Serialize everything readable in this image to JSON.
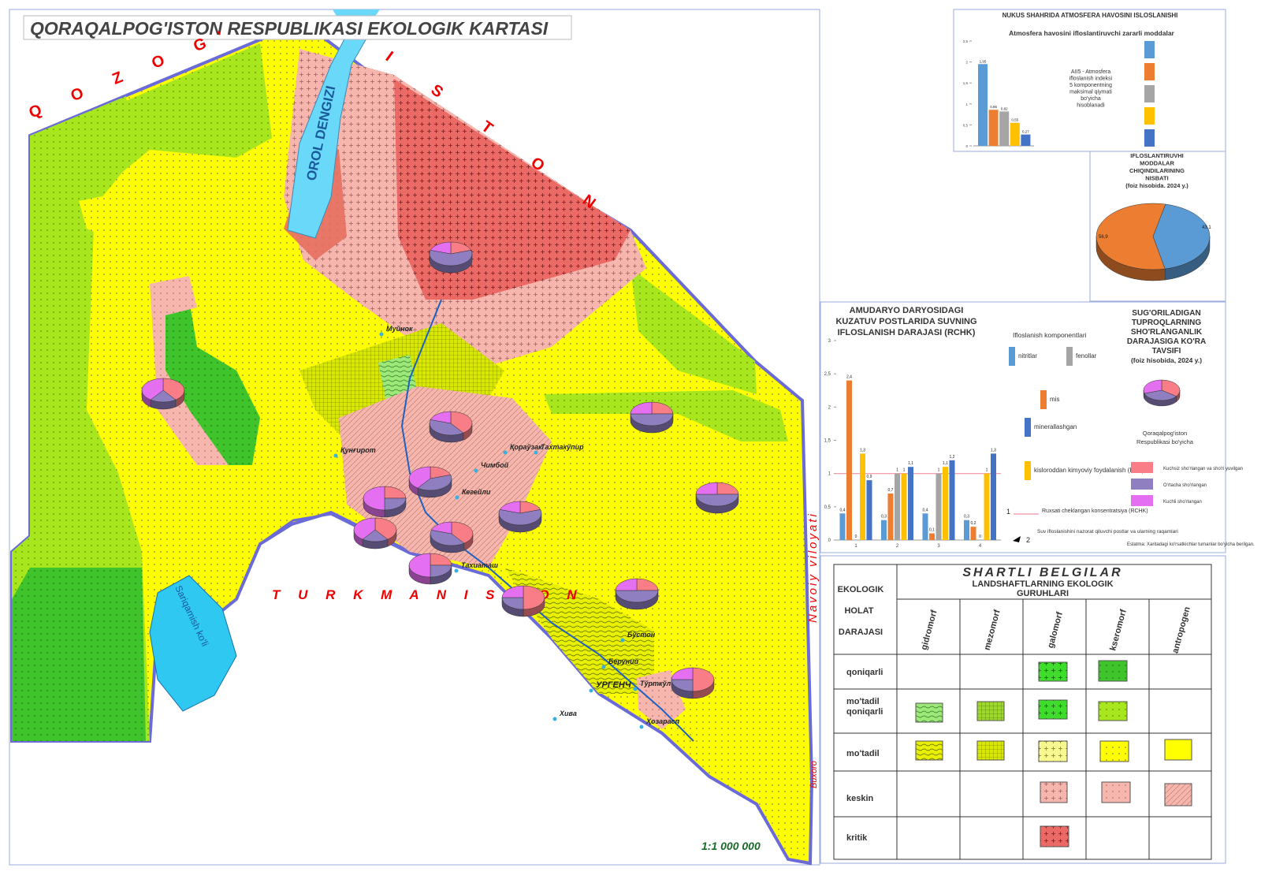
{
  "title": "QORAQALPOG'ISTON RESPUBLIKASI  EKOLOGIK KARTASI",
  "scale": "1:1 000 000",
  "map_labels": {
    "kazakhstan_west": "Q O Z O G'",
    "kazakhstan_east": "I S T O N",
    "turkmenistan": "T U R K M A N I S T O N",
    "navoiy": "Navoiy viloyati",
    "buxoro": "Buxoro",
    "aral_sea": "OROL DENGIZI",
    "sarygamysh": "Sariqamish ko'li"
  },
  "cities": [
    "Муйнок",
    "Қунғирот",
    "Чимбой",
    "Қораўзак",
    "Тахтакўпир",
    "Кегейли",
    "Тахиаташ",
    "Бўстон",
    "Беруний",
    "Тўрткўл",
    "УРГЕНЧ",
    "Хива",
    "Ҳозарасп"
  ],
  "air_chart": {
    "title": "NUKUS SHAHRIDA ATMOSFERA HAVOSINI ISLOSLANISHI",
    "subtitle": "Atmosfera havosini ifloslantiruvchi zararli moddalar",
    "note": [
      "AII5 - Atmosfera",
      "ifloslanish indeksi",
      "5 komponentning",
      "maksimal qiymati",
      "bo'yicha",
      "hisoblanadi"
    ],
    "values": [
      1.95,
      0.86,
      0.82,
      0.55,
      0.27
    ],
    "value_labels": [
      "1,95",
      "0,86",
      "0,82",
      "0,55",
      "0,27"
    ],
    "colors": [
      "#5b9bd5",
      "#ed7d31",
      "#a5a5a5",
      "#ffc000",
      "#4472c4"
    ],
    "ylim": [
      0,
      2.5
    ],
    "yticks": [
      0,
      {
        "value": 0.5,
        "label": "0,5"
      },
      1,
      {
        "value": 1.5,
        "label": "1,5"
      },
      2,
      {
        "value": 2.5,
        "label": "2,5"
      }
    ]
  },
  "pie_chart": {
    "title": [
      "IFLOSLANTIRUVHI",
      "MODDALAR",
      "CHIQINDILARINING",
      "NISBATI",
      "(foiz hisobida. 2024 y.)"
    ],
    "values": [
      43.1,
      56.9
    ],
    "value_labels": [
      "43,1",
      "56,9"
    ],
    "colors": [
      "#5b9bd5",
      "#ed7d31"
    ]
  },
  "river_chart": {
    "title": [
      "AMUDARYO DARYOSIDAGI",
      "KUZATUV POSTLARIDA SUVNING",
      "IFLOSLANISH DARAJASI (RCHK)"
    ],
    "legend_title": "Ifloslanish komponentlari",
    "categories": [
      "1",
      "2",
      "3",
      "4"
    ],
    "series": [
      {
        "name": "nitritlar",
        "color": "#5b9bd5",
        "values": [
          0.4,
          0.3,
          0.4,
          0.3
        ],
        "value_labels": [
          "0,4",
          "0,3",
          "0,4",
          "0,3"
        ]
      },
      {
        "name": "mis",
        "color": "#ed7d31",
        "values": [
          2.4,
          0.7,
          0.1,
          0.2
        ],
        "value_labels": [
          "2,4",
          "0,7",
          "0,1",
          "0,2"
        ]
      },
      {
        "name": "fenollar",
        "color": "#a5a5a5",
        "values": [
          0,
          1,
          1,
          0
        ]
      },
      {
        "name": "kisloroddan kimyoviy foydalanish (KKF)",
        "color": "#ffc000",
        "values": [
          1.3,
          1,
          1.1,
          1
        ],
        "value_labels": [
          "1,3",
          "1",
          "1,1",
          "1"
        ]
      },
      {
        "name": "minerallashgan",
        "color": "#4472c4",
        "values": [
          0.9,
          1.1,
          1.2,
          1.3
        ],
        "value_labels": [
          "0,9",
          "1,1",
          "1,2",
          "1,3"
        ]
      }
    ],
    "ylim": [
      0,
      3
    ],
    "yticks": [
      0,
      {
        "value": 0.5,
        "label": "0,5"
      },
      1,
      {
        "value": 1.5,
        "label": "1,5"
      },
      2,
      {
        "value": 2.5,
        "label": "2,5"
      },
      3
    ],
    "rchk": 1,
    "rchk_key": "1",
    "rchk_label": "Ruxsati cheklangan konsentratsiya (RCHK)",
    "posts_key": "2",
    "posts_label": "Suv ifloslanishini nazorat qiluvchi postlar va ularning raqamlari"
  },
  "soil_chart": {
    "title": [
      "SUG'ORILADIGAN",
      "TUPROQLARNING",
      "SHO'RLANGANLIK",
      "DARAJASIGA KO'RA",
      "TAVSIFI",
      "(foiz hisobida, 2024 y.)"
    ],
    "subtitle": [
      "Qoraqalpog'iston",
      "Respublikasi bo'yicha"
    ],
    "series": [
      {
        "name": "Kuchsiz sho'rlangan va sho'ri yuvilgan",
        "color": "#f87d86",
        "value": 35
      },
      {
        "name": "O'rtacha sho'rlangan",
        "color": "#8f7fc0",
        "value": 35
      },
      {
        "name": "Kuchli sho'rlangan",
        "color": "#e46ff0",
        "value": 30
      }
    ],
    "note": "Eslatma: Xaritadagi ko'rsatkichlar tumanlar bo'yicha berilgan."
  },
  "legend": {
    "title": "SHARTLI BELGILAR",
    "header": [
      "LANDSHAFTLARNING EKOLOGIK",
      "GURUHLARI"
    ],
    "row_header": [
      "EKOLOGIK",
      "HOLAT",
      "DARAJASI"
    ],
    "columns": [
      "gidromorf",
      "mezomorf",
      "galomorf",
      "kseromorf",
      "antropogen"
    ],
    "rows": [
      [
        "qoniqarli"
      ],
      [
        "mo'tadil",
        "qoniqarli"
      ],
      [
        "mo'tadil"
      ],
      [
        "keskin"
      ],
      [
        "kritik"
      ]
    ]
  }
}
